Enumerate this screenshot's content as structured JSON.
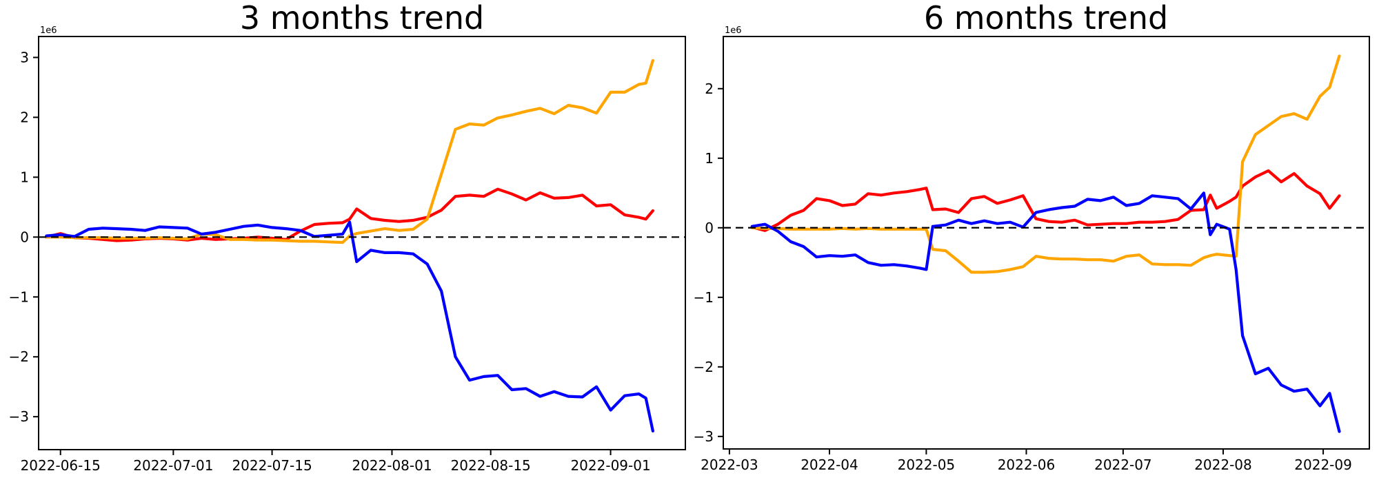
{
  "page": {
    "background": "#ffffff"
  },
  "chart_data": [
    {
      "type": "line",
      "title": "3 months trend",
      "axis_offset_text": "1e6",
      "y_unit_multiplier": 1000000,
      "x_epoch": "2022-06-15",
      "xlim_days": [
        -3.1,
        88.6
      ],
      "ylim": [
        -3.55,
        3.35
      ],
      "yticks": [
        3,
        2,
        1,
        0,
        -1,
        -2,
        -3
      ],
      "xticks": [
        {
          "date": "2022-06-15",
          "label": "2022-06-15"
        },
        {
          "date": "2022-07-01",
          "label": "2022-07-01"
        },
        {
          "date": "2022-07-15",
          "label": "2022-07-15"
        },
        {
          "date": "2022-08-01",
          "label": "2022-08-01"
        },
        {
          "date": "2022-08-15",
          "label": "2022-08-15"
        },
        {
          "date": "2022-09-01",
          "label": "2022-09-01"
        }
      ],
      "zero_line": {
        "style": "dashed",
        "color": "#000000",
        "y": 0
      },
      "grid": false,
      "legend": "none",
      "x": [
        "2022-06-13",
        "2022-06-15",
        "2022-06-17",
        "2022-06-19",
        "2022-06-21",
        "2022-06-23",
        "2022-06-25",
        "2022-06-27",
        "2022-06-29",
        "2022-07-01",
        "2022-07-03",
        "2022-07-05",
        "2022-07-07",
        "2022-07-09",
        "2022-07-11",
        "2022-07-13",
        "2022-07-15",
        "2022-07-17",
        "2022-07-19",
        "2022-07-21",
        "2022-07-23",
        "2022-07-25",
        "2022-07-26",
        "2022-07-27",
        "2022-07-29",
        "2022-07-31",
        "2022-08-02",
        "2022-08-04",
        "2022-08-06",
        "2022-08-08",
        "2022-08-10",
        "2022-08-12",
        "2022-08-14",
        "2022-08-16",
        "2022-08-18",
        "2022-08-20",
        "2022-08-22",
        "2022-08-24",
        "2022-08-26",
        "2022-08-28",
        "2022-08-30",
        "2022-09-01",
        "2022-09-03",
        "2022-09-05",
        "2022-09-06",
        "2022-09-07"
      ],
      "series": [
        {
          "name": "red-line",
          "color": "#ff0000",
          "values": [
            0.0,
            0.06,
            -0.01,
            -0.02,
            -0.04,
            -0.06,
            -0.05,
            -0.03,
            -0.02,
            -0.03,
            -0.05,
            -0.02,
            -0.04,
            -0.03,
            -0.02,
            0.0,
            -0.02,
            -0.04,
            0.1,
            0.21,
            0.23,
            0.24,
            0.3,
            0.47,
            0.31,
            0.28,
            0.26,
            0.28,
            0.33,
            0.45,
            0.68,
            0.7,
            0.68,
            0.8,
            0.72,
            0.62,
            0.74,
            0.65,
            0.66,
            0.7,
            0.52,
            0.54,
            0.37,
            0.33,
            0.3,
            0.44
          ]
        },
        {
          "name": "orange-line",
          "color": "#ffa500",
          "values": [
            0.0,
            0.0,
            -0.01,
            -0.01,
            -0.01,
            -0.02,
            -0.02,
            -0.02,
            -0.01,
            -0.02,
            -0.03,
            0.05,
            0.04,
            -0.04,
            -0.04,
            -0.05,
            -0.05,
            -0.06,
            -0.07,
            -0.07,
            -0.08,
            -0.09,
            0.02,
            0.06,
            0.1,
            0.14,
            0.11,
            0.13,
            0.3,
            1.05,
            1.8,
            1.89,
            1.87,
            1.99,
            2.04,
            2.1,
            2.15,
            2.06,
            2.2,
            2.16,
            2.07,
            2.42,
            2.42,
            2.55,
            2.57,
            2.95
          ]
        },
        {
          "name": "blue-line",
          "color": "#0000ff",
          "values": [
            0.02,
            0.04,
            0.01,
            0.13,
            0.15,
            0.14,
            0.13,
            0.11,
            0.17,
            0.16,
            0.15,
            0.05,
            0.08,
            0.13,
            0.18,
            0.2,
            0.16,
            0.14,
            0.11,
            0.01,
            0.03,
            0.05,
            0.25,
            -0.41,
            -0.22,
            -0.26,
            -0.26,
            -0.28,
            -0.45,
            -0.9,
            -2.0,
            -2.39,
            -2.33,
            -2.31,
            -2.55,
            -2.53,
            -2.66,
            -2.58,
            -2.66,
            -2.67,
            -2.5,
            -2.89,
            -2.65,
            -2.62,
            -2.69,
            -3.24
          ]
        }
      ]
    },
    {
      "type": "line",
      "title": "6 months trend",
      "axis_offset_text": "1e6",
      "y_unit_multiplier": 1000000,
      "x_epoch": "2022-03-01",
      "xlim_days": [
        -1.9,
        198.3
      ],
      "ylim": [
        -3.18,
        2.75
      ],
      "yticks": [
        2,
        1,
        0,
        -1,
        -2,
        -3
      ],
      "xticks": [
        {
          "date": "2022-03-01",
          "label": "2022-03"
        },
        {
          "date": "2022-04-01",
          "label": "2022-04"
        },
        {
          "date": "2022-05-01",
          "label": "2022-05"
        },
        {
          "date": "2022-06-01",
          "label": "2022-06"
        },
        {
          "date": "2022-07-01",
          "label": "2022-07"
        },
        {
          "date": "2022-08-01",
          "label": "2022-08"
        },
        {
          "date": "2022-09-01",
          "label": "2022-09"
        }
      ],
      "zero_line": {
        "style": "dashed",
        "color": "#000000",
        "y": 0
      },
      "grid": false,
      "legend": "none",
      "x": [
        "2022-03-08",
        "2022-03-12",
        "2022-03-16",
        "2022-03-20",
        "2022-03-24",
        "2022-03-28",
        "2022-04-01",
        "2022-04-05",
        "2022-04-09",
        "2022-04-13",
        "2022-04-17",
        "2022-04-21",
        "2022-04-25",
        "2022-04-29",
        "2022-05-01",
        "2022-05-03",
        "2022-05-07",
        "2022-05-11",
        "2022-05-15",
        "2022-05-19",
        "2022-05-23",
        "2022-05-27",
        "2022-05-31",
        "2022-06-04",
        "2022-06-08",
        "2022-06-12",
        "2022-06-16",
        "2022-06-20",
        "2022-06-24",
        "2022-06-28",
        "2022-07-02",
        "2022-07-06",
        "2022-07-10",
        "2022-07-14",
        "2022-07-18",
        "2022-07-22",
        "2022-07-26",
        "2022-07-28",
        "2022-07-30",
        "2022-08-03",
        "2022-08-05",
        "2022-08-07",
        "2022-08-11",
        "2022-08-15",
        "2022-08-19",
        "2022-08-23",
        "2022-08-27",
        "2022-08-31",
        "2022-09-03",
        "2022-09-06"
      ],
      "series": [
        {
          "name": "red-line",
          "color": "#ff0000",
          "values": [
            0.01,
            -0.04,
            0.05,
            0.18,
            0.25,
            0.42,
            0.39,
            0.32,
            0.34,
            0.49,
            0.47,
            0.5,
            0.52,
            0.55,
            0.57,
            0.26,
            0.27,
            0.22,
            0.42,
            0.45,
            0.35,
            0.4,
            0.46,
            0.13,
            0.09,
            0.08,
            0.11,
            0.04,
            0.05,
            0.06,
            0.06,
            0.08,
            0.08,
            0.09,
            0.12,
            0.25,
            0.26,
            0.47,
            0.28,
            0.38,
            0.44,
            0.6,
            0.73,
            0.82,
            0.66,
            0.78,
            0.6,
            0.49,
            0.28,
            0.46
          ]
        },
        {
          "name": "orange-line",
          "color": "#ffa500",
          "values": [
            0.0,
            -0.01,
            -0.01,
            -0.02,
            -0.02,
            -0.02,
            -0.02,
            -0.01,
            -0.02,
            -0.01,
            -0.02,
            -0.02,
            -0.02,
            -0.02,
            -0.02,
            -0.31,
            -0.33,
            -0.48,
            -0.64,
            -0.64,
            -0.63,
            -0.6,
            -0.56,
            -0.41,
            -0.44,
            -0.45,
            -0.45,
            -0.46,
            -0.46,
            -0.48,
            -0.41,
            -0.39,
            -0.52,
            -0.53,
            -0.53,
            -0.54,
            -0.43,
            -0.4,
            -0.38,
            -0.4,
            -0.41,
            0.95,
            1.34,
            1.47,
            1.6,
            1.64,
            1.56,
            1.89,
            2.02,
            2.47
          ]
        },
        {
          "name": "blue-line",
          "color": "#0000ff",
          "values": [
            0.02,
            0.05,
            -0.05,
            -0.2,
            -0.27,
            -0.42,
            -0.4,
            -0.41,
            -0.39,
            -0.5,
            -0.54,
            -0.53,
            -0.55,
            -0.58,
            -0.6,
            0.02,
            0.04,
            0.11,
            0.06,
            0.1,
            0.06,
            0.08,
            0.01,
            0.22,
            0.26,
            0.29,
            0.31,
            0.41,
            0.39,
            0.44,
            0.32,
            0.35,
            0.46,
            0.44,
            0.42,
            0.27,
            0.5,
            -0.1,
            0.05,
            -0.02,
            -0.6,
            -1.55,
            -2.1,
            -2.02,
            -2.26,
            -2.35,
            -2.32,
            -2.56,
            -2.38,
            -2.93
          ]
        }
      ]
    }
  ]
}
